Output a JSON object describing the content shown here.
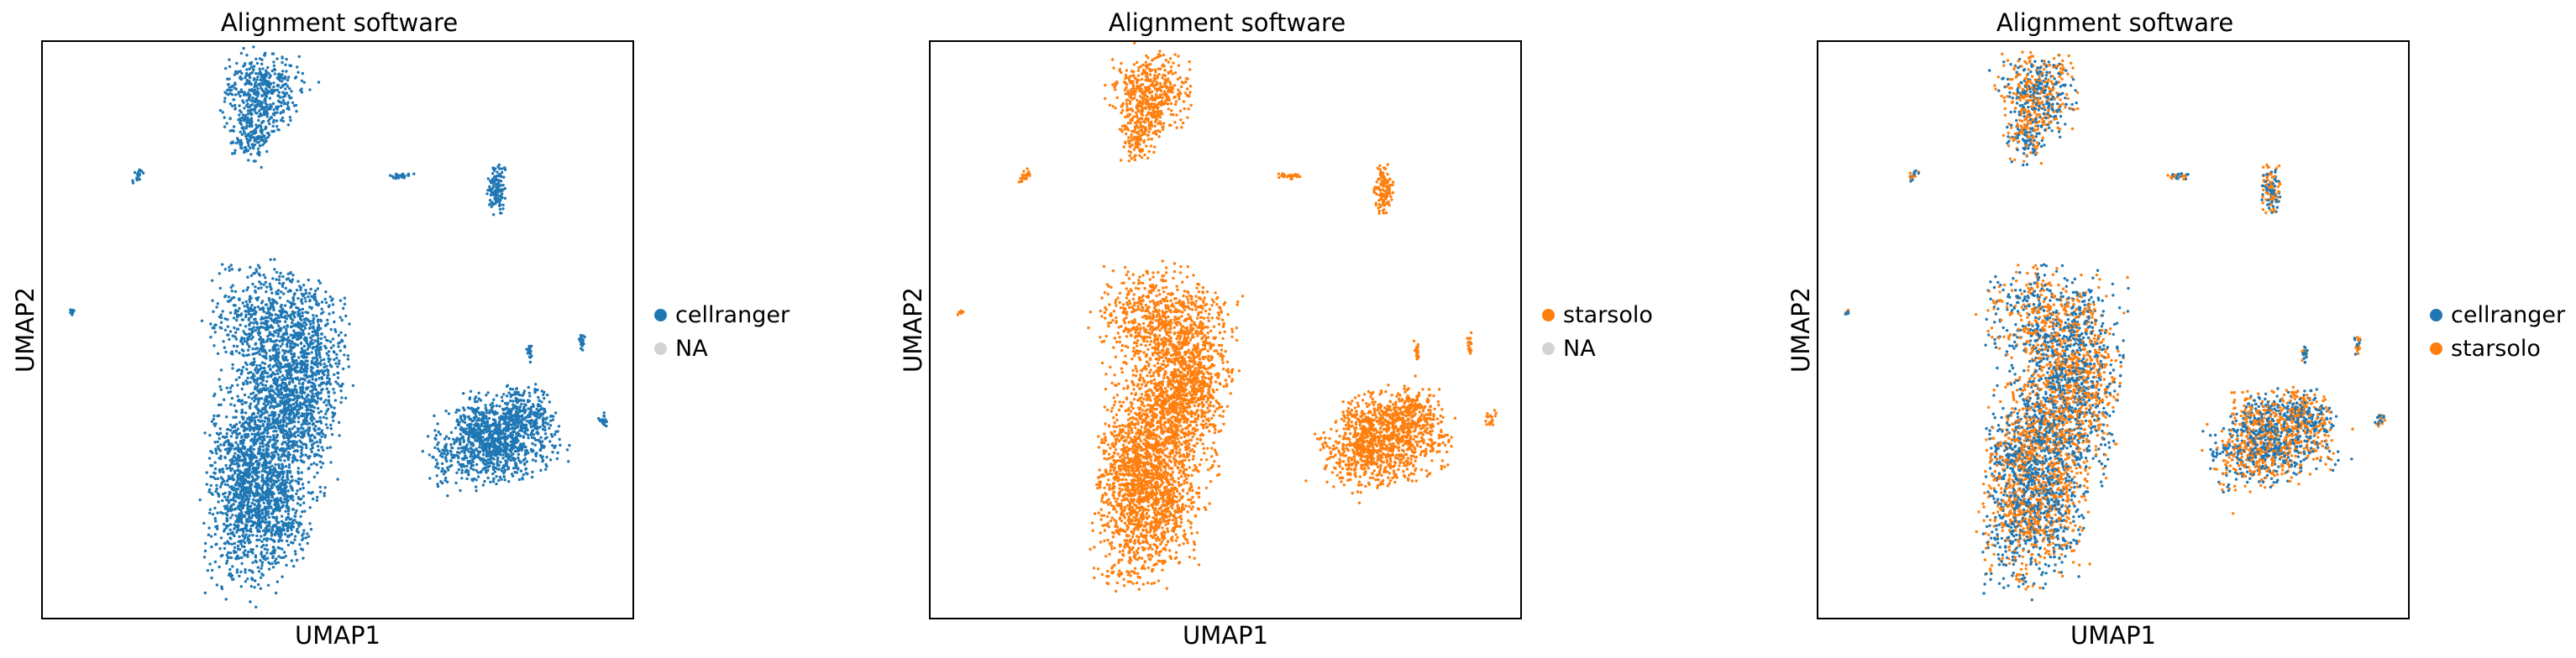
{
  "chart_data": [
    {
      "type": "scatter",
      "title": "Alignment software",
      "xlabel": "UMAP1",
      "ylabel": "UMAP2",
      "grid": false,
      "legend_position": "right",
      "legend": [
        {
          "label": "cellranger",
          "color": "#1f77b4"
        },
        {
          "label": "NA",
          "color": "#d3d3d3"
        }
      ],
      "series": [
        {
          "name": "cellranger",
          "color": "#1f77b4"
        }
      ]
    },
    {
      "type": "scatter",
      "title": "Alignment software",
      "xlabel": "UMAP1",
      "ylabel": "UMAP2",
      "grid": false,
      "legend_position": "right",
      "legend": [
        {
          "label": "starsolo",
          "color": "#ff7f0e"
        },
        {
          "label": "NA",
          "color": "#d3d3d3"
        }
      ],
      "series": [
        {
          "name": "starsolo",
          "color": "#ff7f0e"
        }
      ]
    },
    {
      "type": "scatter",
      "title": "Alignment software",
      "xlabel": "UMAP1",
      "ylabel": "UMAP2",
      "grid": false,
      "legend_position": "right",
      "legend": [
        {
          "label": "cellranger",
          "color": "#1f77b4"
        },
        {
          "label": "starsolo",
          "color": "#ff7f0e"
        }
      ],
      "series": [
        {
          "name": "cellranger",
          "color": "#1f77b4"
        },
        {
          "name": "starsolo",
          "color": "#ff7f0e"
        }
      ]
    }
  ]
}
